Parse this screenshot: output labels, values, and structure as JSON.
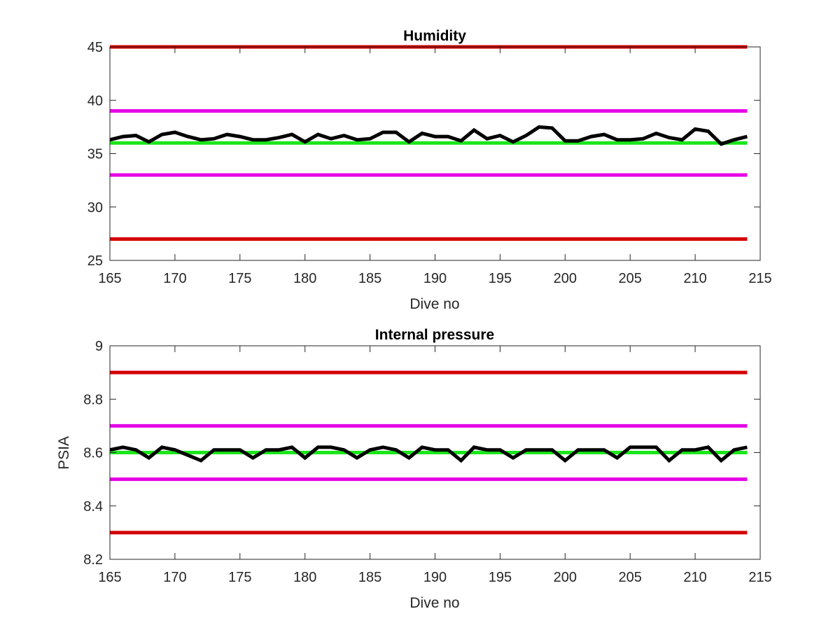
{
  "colors": {
    "limit_red": "#d40000",
    "limit_magenta": "#e600e6",
    "nominal_green": "#1ae61a",
    "data_black": "#000000",
    "axis": "#262626"
  },
  "chart_data": [
    {
      "type": "line",
      "title": "Humidity",
      "xlabel": "Dive no",
      "ylabel": "",
      "xlim": [
        165,
        215
      ],
      "ylim": [
        25,
        45
      ],
      "xticks": [
        165,
        170,
        175,
        180,
        185,
        190,
        195,
        200,
        205,
        210,
        215
      ],
      "yticks": [
        25,
        30,
        35,
        40,
        45
      ],
      "grid": false,
      "reference_lines": [
        {
          "y": 45,
          "color": "limit_red"
        },
        {
          "y": 39,
          "color": "limit_magenta"
        },
        {
          "y": 36,
          "color": "nominal_green"
        },
        {
          "y": 33,
          "color": "limit_magenta"
        },
        {
          "y": 27,
          "color": "limit_red"
        }
      ],
      "series": [
        {
          "color": "data_black",
          "x": [
            165,
            166,
            167,
            168,
            169,
            170,
            171,
            172,
            173,
            174,
            175,
            176,
            177,
            178,
            179,
            180,
            181,
            182,
            183,
            184,
            185,
            186,
            187,
            188,
            189,
            190,
            191,
            192,
            193,
            194,
            195,
            196,
            197,
            198,
            199,
            200,
            201,
            202,
            203,
            204,
            205,
            206,
            207,
            208,
            209,
            210,
            211,
            212,
            213,
            214
          ],
          "y": [
            36.3,
            36.6,
            36.7,
            36.1,
            36.8,
            37.0,
            36.6,
            36.3,
            36.4,
            36.8,
            36.6,
            36.3,
            36.3,
            36.5,
            36.8,
            36.1,
            36.8,
            36.4,
            36.7,
            36.3,
            36.4,
            37.0,
            37.0,
            36.1,
            36.9,
            36.6,
            36.6,
            36.2,
            37.2,
            36.4,
            36.7,
            36.1,
            36.7,
            37.5,
            37.4,
            36.2,
            36.2,
            36.6,
            36.8,
            36.3,
            36.3,
            36.4,
            36.9,
            36.5,
            36.3,
            37.3,
            37.1,
            35.9,
            36.3,
            36.6
          ]
        }
      ]
    },
    {
      "type": "line",
      "title": "Internal pressure",
      "xlabel": "Dive no",
      "ylabel": "PSIA",
      "xlim": [
        165,
        215
      ],
      "ylim": [
        8.2,
        9.0
      ],
      "xticks": [
        165,
        170,
        175,
        180,
        185,
        190,
        195,
        200,
        205,
        210,
        215
      ],
      "yticks": [
        8.2,
        8.4,
        8.6,
        8.8,
        9.0
      ],
      "ytick_labels": [
        "8.2",
        "8.4",
        "8.6",
        "8.8",
        "9"
      ],
      "grid": false,
      "reference_lines": [
        {
          "y": 8.9,
          "color": "limit_red"
        },
        {
          "y": 8.7,
          "color": "limit_magenta"
        },
        {
          "y": 8.6,
          "color": "nominal_green"
        },
        {
          "y": 8.5,
          "color": "limit_magenta"
        },
        {
          "y": 8.3,
          "color": "limit_red"
        }
      ],
      "series": [
        {
          "color": "data_black",
          "x": [
            165,
            166,
            167,
            168,
            169,
            170,
            171,
            172,
            173,
            174,
            175,
            176,
            177,
            178,
            179,
            180,
            181,
            182,
            183,
            184,
            185,
            186,
            187,
            188,
            189,
            190,
            191,
            192,
            193,
            194,
            195,
            196,
            197,
            198,
            199,
            200,
            201,
            202,
            203,
            204,
            205,
            206,
            207,
            208,
            209,
            210,
            211,
            212,
            213,
            214
          ],
          "y": [
            8.61,
            8.62,
            8.61,
            8.58,
            8.62,
            8.61,
            8.59,
            8.57,
            8.61,
            8.61,
            8.61,
            8.58,
            8.61,
            8.61,
            8.62,
            8.58,
            8.62,
            8.62,
            8.61,
            8.58,
            8.61,
            8.62,
            8.61,
            8.58,
            8.62,
            8.61,
            8.61,
            8.57,
            8.62,
            8.61,
            8.61,
            8.58,
            8.61,
            8.61,
            8.61,
            8.57,
            8.61,
            8.61,
            8.61,
            8.58,
            8.62,
            8.62,
            8.62,
            8.57,
            8.61,
            8.61,
            8.62,
            8.57,
            8.61,
            8.62
          ]
        }
      ]
    }
  ]
}
